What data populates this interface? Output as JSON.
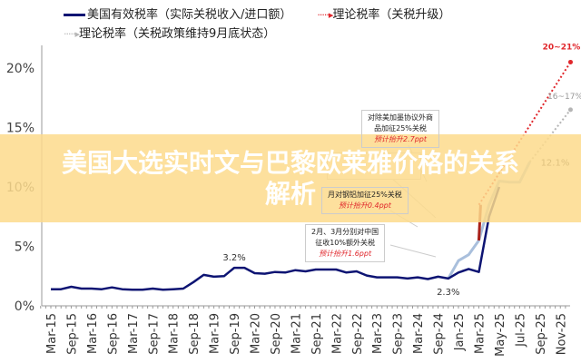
{
  "legend": [
    {
      "label": "美国有效税率（实际关税收入/进口额）",
      "style": "solid",
      "color": "#0d1473"
    },
    {
      "label": "理论税率（关税升级）",
      "style": "dotted-arrow",
      "color": "#e0262b"
    },
    {
      "label": "理论税率（关税政策维持9月底状态）",
      "style": "dotted-arrow",
      "color": "#b5b5b5"
    }
  ],
  "banner": {
    "title": "美国大选实时文与巴黎欧莱雅价格的关系解析"
  },
  "annotations": [
    {
      "lines": [
        "对除美加墨协议外商",
        "品加征25%关税"
      ],
      "note": "预计抬升2.7ppt"
    },
    {
      "lines": [
        "月对钢铝加征25%关税"
      ],
      "note": "预计抬升0.4ppt"
    },
    {
      "lines": [
        "2月、3月分别对中国",
        "征收10%额外关税"
      ],
      "note": "预计抬升1.6ppt"
    }
  ],
  "chart_data": {
    "type": "line",
    "title": "",
    "xlabel": "",
    "ylabel": "",
    "ylim": [
      0,
      22
    ],
    "yticks": [
      "0%",
      "5%",
      "10%",
      "15%",
      "20%"
    ],
    "ytick_values": [
      0,
      5,
      10,
      15,
      20
    ],
    "xticks": [
      "Mar-15",
      "Sep-15",
      "Mar-16",
      "Sep-16",
      "Mar-17",
      "Sep-17",
      "Mar-18",
      "Sep-18",
      "Mar-19",
      "Sep-19",
      "Mar-20",
      "Sep-20",
      "Mar-21",
      "Sep-21",
      "Mar-22",
      "Sep-22",
      "Mar-23",
      "Sep-23",
      "Mar-24",
      "Sep-24",
      "Jan-25",
      "Mar-25",
      "May-25",
      "Jul-25",
      "Sep-25",
      "Nov-25"
    ],
    "grid": false,
    "legend_position": "top",
    "colors": {
      "effective": "#0d1473",
      "escalation": "#e0262b",
      "sept_state": "#b5b5b5",
      "theoretical_segment": "#a9bfdc"
    },
    "data_labels": [
      {
        "text": "3.2%",
        "x": "2019-09",
        "y": 3.2
      },
      {
        "text": "2.3%",
        "x": "2024-11",
        "y": 2.3
      },
      {
        "text": "12.1%",
        "x": "2025-08",
        "y": 12.1
      },
      {
        "text": "20~21%",
        "x": "2025-12",
        "y": 20.5,
        "color": "#e0262b"
      },
      {
        "text": "16~17%",
        "x": "2025-12",
        "y": 16.5,
        "color": "#999999"
      }
    ],
    "series": [
      {
        "name": "美国有效税率（实际关税收入/进口额）",
        "style": "solid",
        "points": [
          [
            "2015-03",
            1.4
          ],
          [
            "2015-06",
            1.4
          ],
          [
            "2015-09",
            1.6
          ],
          [
            "2015-12",
            1.45
          ],
          [
            "2016-03",
            1.45
          ],
          [
            "2016-06",
            1.4
          ],
          [
            "2016-09",
            1.55
          ],
          [
            "2016-12",
            1.4
          ],
          [
            "2017-03",
            1.35
          ],
          [
            "2017-06",
            1.35
          ],
          [
            "2017-09",
            1.45
          ],
          [
            "2017-12",
            1.35
          ],
          [
            "2018-03",
            1.4
          ],
          [
            "2018-06",
            1.45
          ],
          [
            "2018-09",
            2.0
          ],
          [
            "2018-12",
            2.6
          ],
          [
            "2019-03",
            2.45
          ],
          [
            "2019-06",
            2.5
          ],
          [
            "2019-09",
            3.2
          ],
          [
            "2019-12",
            3.2
          ],
          [
            "2020-03",
            2.75
          ],
          [
            "2020-06",
            2.7
          ],
          [
            "2020-09",
            2.85
          ],
          [
            "2020-12",
            2.8
          ],
          [
            "2021-03",
            3.0
          ],
          [
            "2021-06",
            2.9
          ],
          [
            "2021-09",
            3.05
          ],
          [
            "2021-12",
            3.05
          ],
          [
            "2022-03",
            3.05
          ],
          [
            "2022-06",
            2.8
          ],
          [
            "2022-09",
            2.9
          ],
          [
            "2022-12",
            2.55
          ],
          [
            "2023-03",
            2.4
          ],
          [
            "2023-06",
            2.4
          ],
          [
            "2023-09",
            2.4
          ],
          [
            "2023-12",
            2.3
          ],
          [
            "2024-03",
            2.4
          ],
          [
            "2024-06",
            2.25
          ],
          [
            "2024-09",
            2.45
          ],
          [
            "2024-11",
            2.3
          ],
          [
            "2025-01",
            2.8
          ],
          [
            "2025-02",
            3.1
          ],
          [
            "2025-03",
            2.85
          ],
          [
            "2025-04",
            7.5
          ],
          [
            "2025-05",
            10.0
          ]
        ]
      },
      {
        "name": "理论税率（关税政策维持9月底状态）",
        "style": "solid",
        "points": [
          [
            "2024-11",
            2.3
          ],
          [
            "2025-01",
            3.8
          ],
          [
            "2025-02",
            4.3
          ],
          [
            "2025-03",
            5.5
          ],
          [
            "2025-04",
            8.5
          ],
          [
            "2025-05",
            10.5
          ],
          [
            "2025-06",
            10.4
          ],
          [
            "2025-07",
            10.4
          ],
          [
            "2025-08",
            12.1
          ]
        ]
      },
      {
        "name": "理论税率（关税升级）",
        "style": "dotted",
        "points": [
          [
            "2025-03",
            8.5
          ],
          [
            "2025-12",
            20.5
          ]
        ]
      },
      {
        "name": "理论税率（关税政策维持9月底状态）",
        "style": "dotted",
        "points": [
          [
            "2025-08",
            12.1
          ],
          [
            "2025-12",
            16.5
          ]
        ]
      }
    ]
  }
}
